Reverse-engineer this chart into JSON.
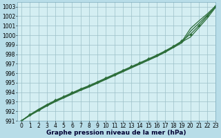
{
  "background_color": "#b8dde8",
  "plot_bg_color": "#d4eef2",
  "grid_color": "#9bbfc8",
  "line_color": "#2d6e3a",
  "xlabel": "Graphe pression niveau de la mer (hPa)",
  "xlabel_fontsize": 6.5,
  "tick_fontsize": 5.5,
  "xlim": [
    -0.5,
    23
  ],
  "ylim": [
    991,
    1003.5
  ],
  "yticks": [
    991,
    992,
    993,
    994,
    995,
    996,
    997,
    998,
    999,
    1000,
    1001,
    1002,
    1003
  ],
  "xticks": [
    0,
    1,
    2,
    3,
    4,
    5,
    6,
    7,
    8,
    9,
    10,
    11,
    12,
    13,
    14,
    15,
    16,
    17,
    18,
    19,
    20,
    21,
    22,
    23
  ],
  "lines": [
    {
      "y": [
        991.0,
        991.6,
        992.15,
        992.65,
        993.1,
        993.5,
        993.9,
        994.3,
        994.65,
        995.05,
        995.45,
        995.85,
        996.25,
        996.65,
        997.05,
        997.45,
        997.85,
        998.3,
        998.8,
        999.35,
        1000.7,
        1001.5,
        1002.25,
        1003.1
      ],
      "marker": false,
      "lw": 0.9
    },
    {
      "y": [
        991.0,
        991.55,
        992.05,
        992.55,
        993.0,
        993.4,
        993.8,
        994.2,
        994.55,
        994.95,
        995.35,
        995.75,
        996.15,
        996.55,
        996.95,
        997.35,
        997.75,
        998.2,
        998.7,
        999.2,
        1000.4,
        1001.25,
        1002.1,
        1003.0
      ],
      "marker": false,
      "lw": 0.9
    },
    {
      "y": [
        991.0,
        991.65,
        992.2,
        992.7,
        993.15,
        993.55,
        993.95,
        994.35,
        994.7,
        995.1,
        995.5,
        995.9,
        996.3,
        996.7,
        997.1,
        997.5,
        997.9,
        998.35,
        998.85,
        999.4,
        1000.1,
        1001.0,
        1002.0,
        1003.05
      ],
      "marker": true,
      "lw": 0.9
    },
    {
      "y": [
        991.0,
        991.6,
        992.1,
        992.6,
        993.05,
        993.45,
        993.85,
        994.25,
        994.6,
        995.0,
        995.4,
        995.8,
        996.2,
        996.6,
        997.0,
        997.4,
        997.8,
        998.25,
        998.75,
        999.3,
        999.8,
        1000.8,
        1001.8,
        1002.95
      ],
      "marker": false,
      "lw": 0.9
    }
  ],
  "figsize": [
    3.2,
    2.0
  ],
  "dpi": 100
}
